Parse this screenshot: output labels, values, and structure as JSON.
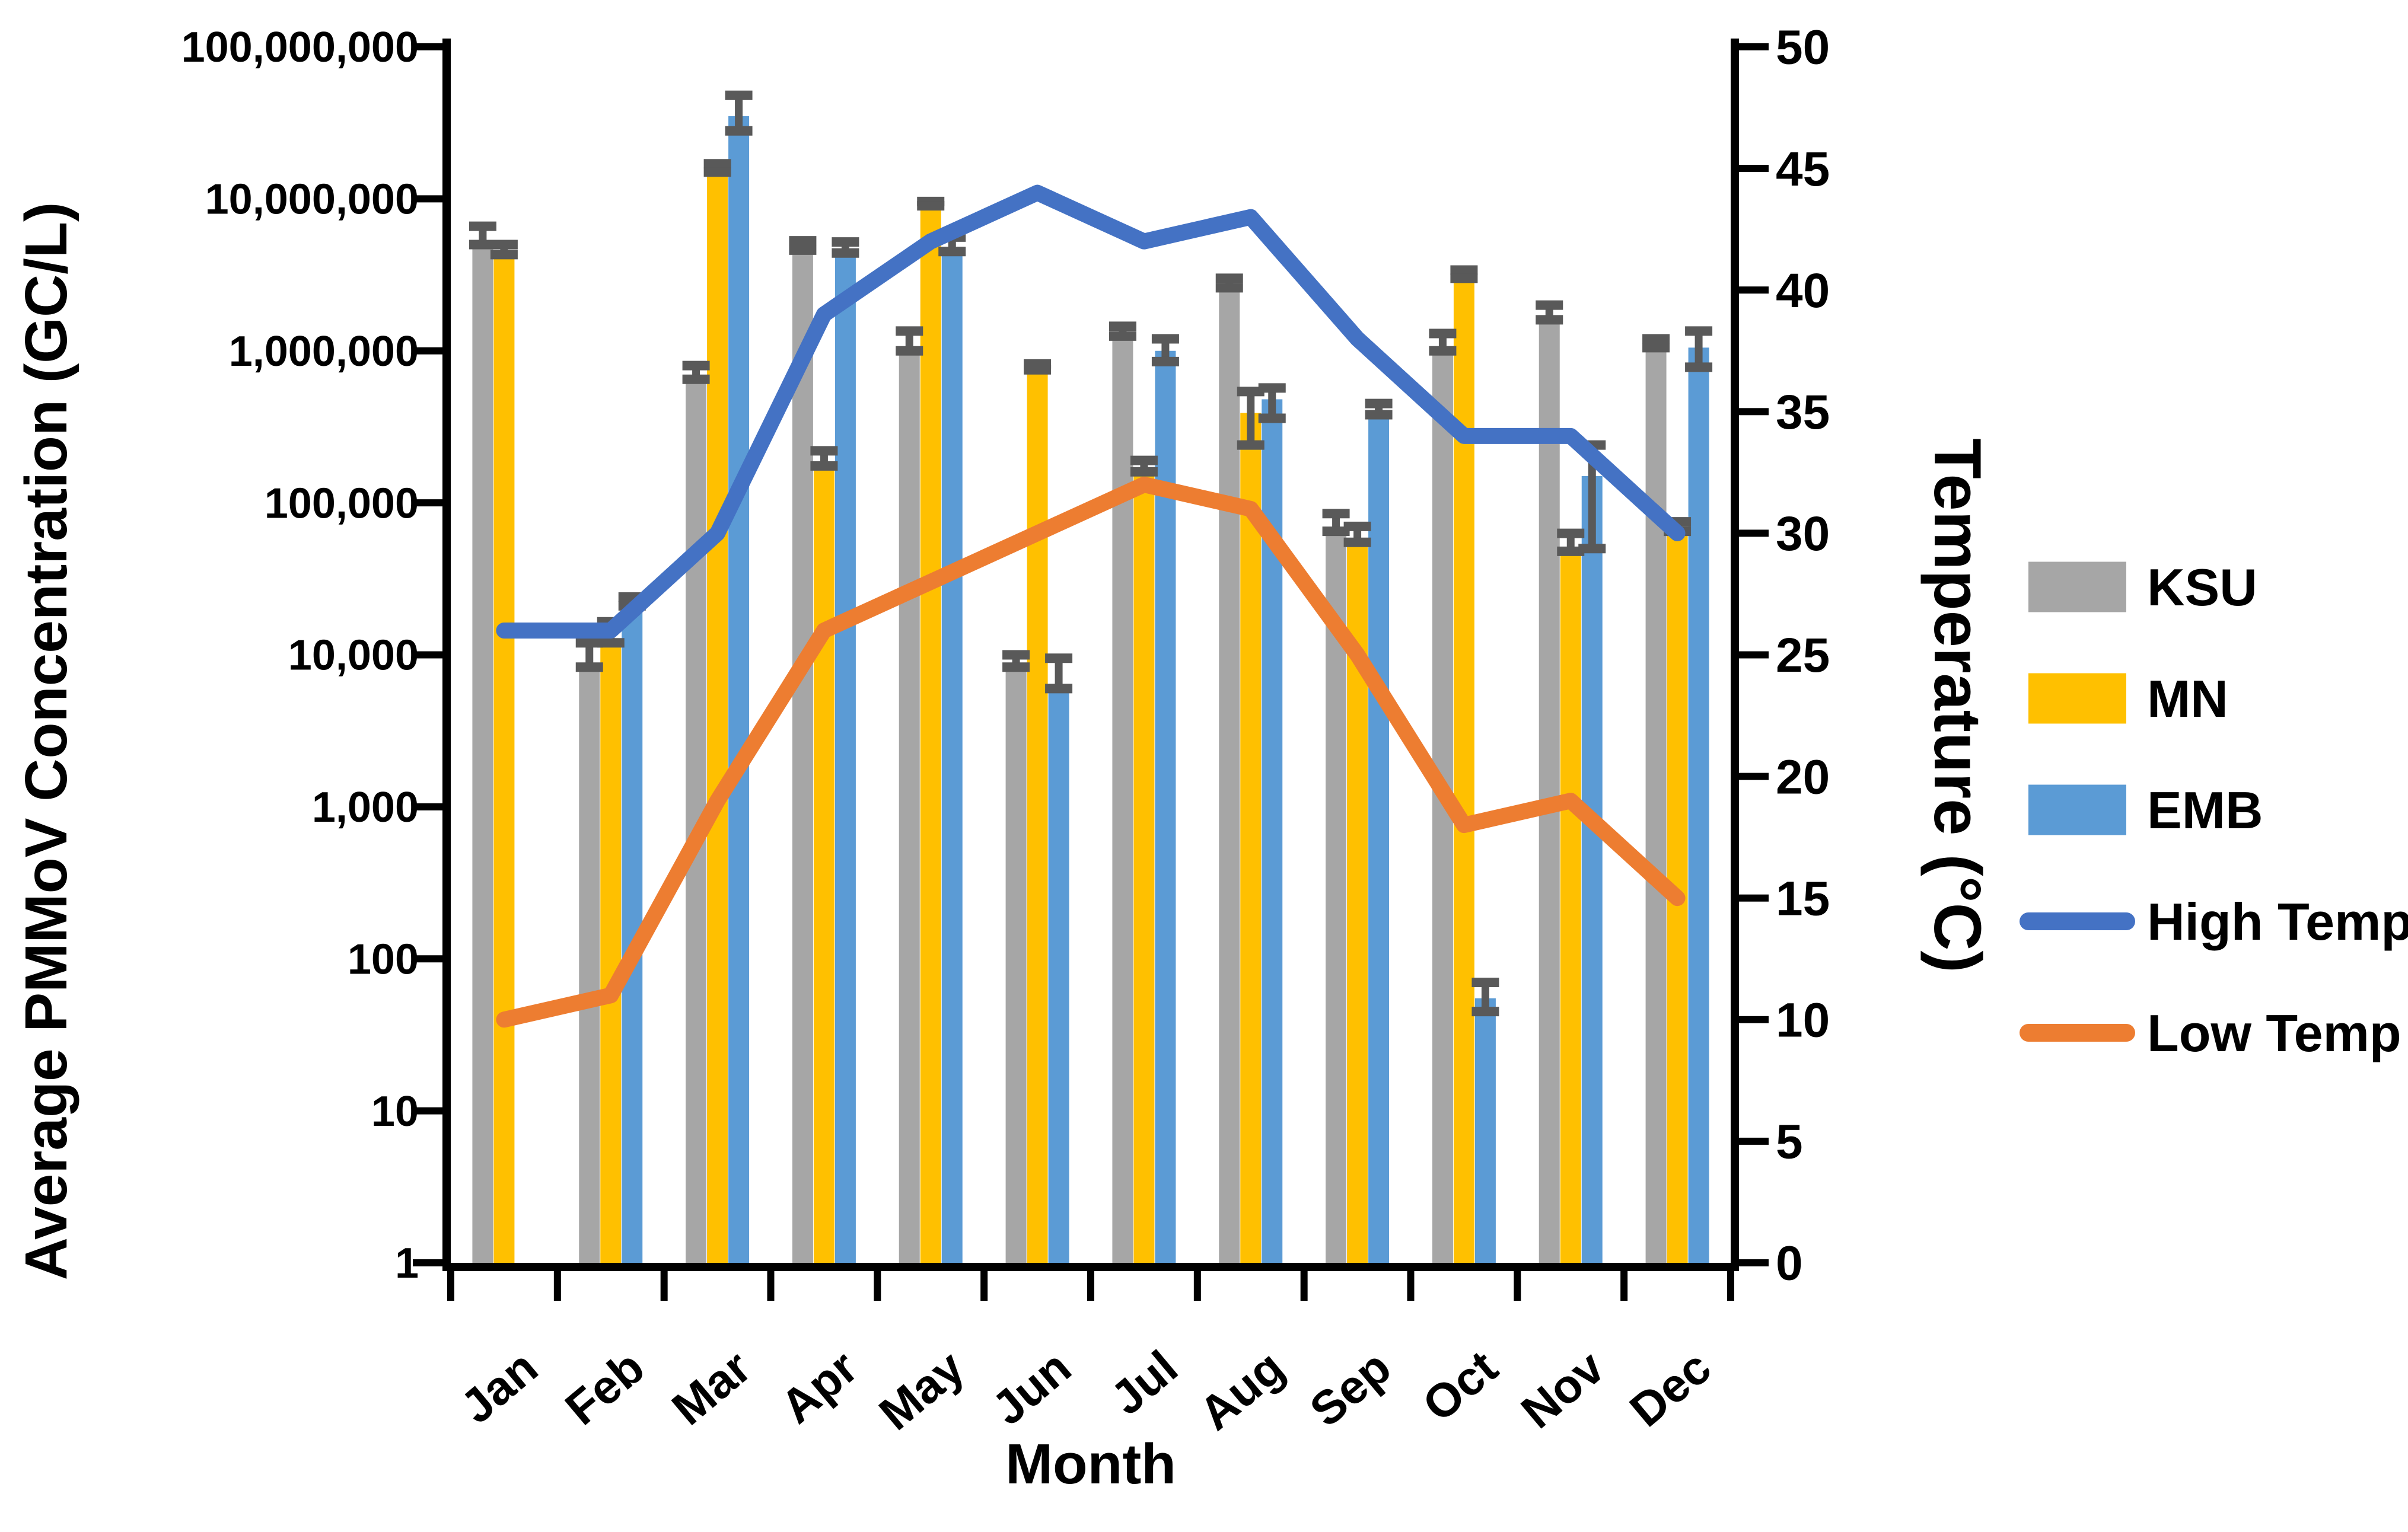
{
  "figure": {
    "x_axis_title": "Month",
    "left_axis_title": "Average PMMoV Concentration (GC/L)",
    "right_axis_title": "Temperature (°C)"
  },
  "chart_data": {
    "type": "bar",
    "subtype": "grouped-bars-with-two-temperature-lines",
    "categories": [
      "Jan",
      "Feb",
      "Mar",
      "Apr",
      "May",
      "Jun",
      "Jul",
      "Aug",
      "Sep",
      "Oct",
      "Nov",
      "Dec"
    ],
    "left_axis": {
      "label": "Average PMMoV Concentration (GC/L)",
      "scale": "log",
      "min": 1,
      "max": 100000000,
      "ticks": [
        {
          "v": 100000000,
          "label": "100,000,000"
        },
        {
          "v": 10000000,
          "label": "10,000,000"
        },
        {
          "v": 1000000,
          "label": "1,000,000"
        },
        {
          "v": 100000,
          "label": "100,000"
        },
        {
          "v": 10000,
          "label": "10,000"
        },
        {
          "v": 1000,
          "label": "1,000"
        },
        {
          "v": 100,
          "label": "100"
        },
        {
          "v": 10,
          "label": "10"
        },
        {
          "v": 1,
          "label": "1"
        }
      ]
    },
    "right_axis": {
      "label": "Temperature (°C)",
      "min": 0,
      "max": 50,
      "step": 5,
      "tick_labels": [
        "0",
        "5",
        "10",
        "15",
        "20",
        "25",
        "30",
        "35",
        "40",
        "45",
        "50"
      ]
    },
    "x_axis": {
      "label": "Month"
    },
    "series": [
      {
        "name": "KSU",
        "kind": "bar",
        "color": "#a6a6a6",
        "values": [
          5000000,
          8300,
          650000,
          4600000,
          1000000,
          8300,
          1250000,
          2600000,
          65000,
          1000000,
          1600000,
          1050000
        ],
        "err_hi": [
          6600000,
          12000,
          800000,
          5300000,
          1350000,
          10000,
          1450000,
          3000000,
          85000,
          1300000,
          2000000,
          1200000
        ],
        "err_lo": [
          null,
          null,
          null,
          null,
          null,
          null,
          null,
          null,
          null,
          null,
          null,
          null
        ]
      },
      {
        "name": "MN",
        "kind": "bar",
        "color": "#ffc000",
        "values": [
          4300000,
          12000,
          15000000,
          175000,
          9000000,
          750000,
          160000,
          390000,
          55000,
          3000000,
          48000,
          65000
        ],
        "err_hi": [
          5000000,
          16500,
          17000000,
          220000,
          9600000,
          820000,
          190000,
          540000,
          70000,
          3400000,
          63000,
          75000
        ],
        "err_lo": [
          null,
          null,
          null,
          null,
          null,
          null,
          null,
          240000,
          null,
          null,
          null,
          null
        ]
      },
      {
        "name": "EMB",
        "kind": "bar",
        "color": "#5b9bd5",
        "values": [
          null,
          21000,
          35000000,
          4400000,
          4500000,
          6000,
          1000000,
          480000,
          380000,
          55,
          150000,
          1050000
        ],
        "err_hi": [
          null,
          24000,
          48000000,
          5200000,
          5600000,
          9500,
          1200000,
          570000,
          450000,
          70,
          240000,
          1350000
        ],
        "err_lo": [
          null,
          null,
          28000000,
          null,
          null,
          null,
          850000,
          360000,
          null,
          45,
          50000,
          780000
        ]
      },
      {
        "name": "High Temp",
        "kind": "line",
        "axis": "right",
        "color": "#4472c4",
        "values": [
          26,
          26,
          30,
          39,
          42,
          44,
          42,
          43,
          38,
          34,
          34,
          30
        ]
      },
      {
        "name": "Low Temp",
        "kind": "line",
        "axis": "right",
        "color": "#ed7d31",
        "values": [
          10,
          11,
          19,
          26,
          28,
          30,
          32,
          31,
          25,
          18,
          19,
          15
        ]
      }
    ],
    "legend": [
      {
        "label": "KSU",
        "swatch": "bar",
        "color": "#a6a6a6"
      },
      {
        "label": "MN",
        "swatch": "bar",
        "color": "#ffc000"
      },
      {
        "label": "EMB",
        "swatch": "bar",
        "color": "#5b9bd5"
      },
      {
        "label": "High Temp",
        "swatch": "line",
        "color": "#4472c4"
      },
      {
        "label": "Low Temp",
        "swatch": "line",
        "color": "#ed7d31"
      }
    ],
    "error_bar_color": "#595959",
    "grid": false,
    "legend_position": "right"
  }
}
